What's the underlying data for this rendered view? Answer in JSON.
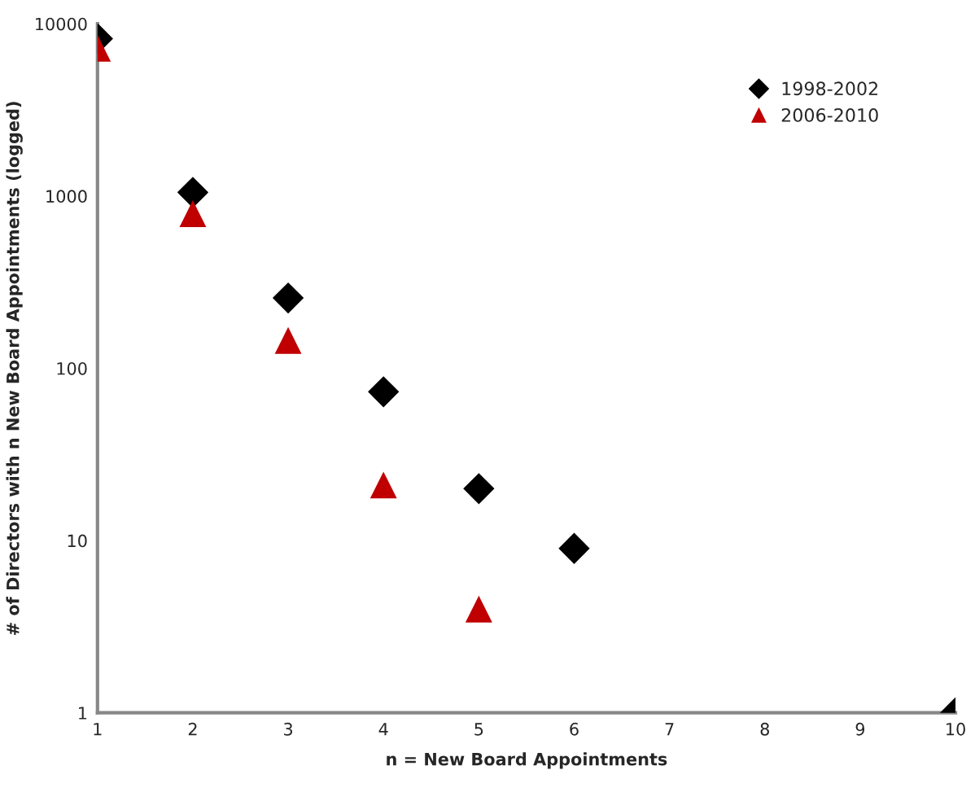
{
  "chart_data": {
    "type": "scatter",
    "xlabel": "n = New Board Appointments",
    "ylabel": "# of Directors with n New Board Appointments (logged)",
    "log": "y",
    "xlim": [
      1,
      10
    ],
    "xticks": [
      1,
      2,
      3,
      4,
      5,
      6,
      7,
      8,
      9,
      10
    ],
    "ylim": [
      1,
      10000
    ],
    "yticks": [
      1,
      10,
      100,
      1000,
      10000
    ],
    "grid": false,
    "legend": "top right",
    "series": [
      {
        "name": "1998-2002",
        "color": "#000000",
        "marker": "diamond",
        "x": [
          1,
          2,
          3,
          4,
          5,
          6,
          10
        ],
        "values": [
          8200,
          1050,
          256,
          73,
          20,
          9,
          1
        ]
      },
      {
        "name": "2006-2010",
        "color": "#c00000",
        "marker": "triangle",
        "x": [
          1,
          2,
          3,
          4,
          5
        ],
        "values": [
          7200,
          790,
          145,
          21,
          4
        ]
      }
    ]
  }
}
